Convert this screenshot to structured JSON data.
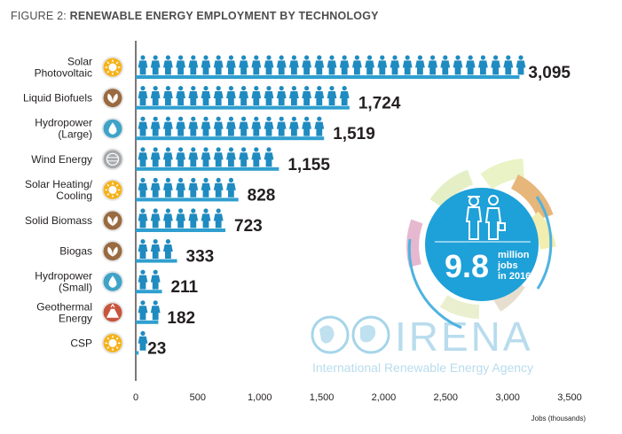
{
  "figure": {
    "prefix": "FIGURE 2:",
    "title": "RENEWABLE ENERGY EMPLOYMENT BY TECHNOLOGY"
  },
  "chart_data": {
    "type": "bar",
    "orientation": "horizontal",
    "categories": [
      "Solar\nPhotovoltaic",
      "Liquid Biofuels",
      "Hydropower\n(Large)",
      "Wind Energy",
      "Solar Heating/\nCooling",
      "Solid Biomass",
      "Biogas",
      "Hydropower\n(Small)",
      "Geothermal\nEnergy",
      "CSP"
    ],
    "values": [
      3095,
      1724,
      1519,
      1155,
      828,
      723,
      333,
      211,
      182,
      23
    ],
    "value_labels": [
      "3,095",
      "1,724",
      "1,519",
      "1,155",
      "828",
      "723",
      "333",
      "211",
      "182",
      "23"
    ],
    "xlim": [
      0,
      3500
    ],
    "xticks": [
      0,
      500,
      1000,
      1500,
      2000,
      2500,
      3000,
      3500
    ],
    "xtick_labels": [
      "0",
      "500",
      "1,000",
      "1,500",
      "2,000",
      "2,500",
      "3,000",
      "3,500"
    ],
    "xlabel": "Jobs (thousands)",
    "icons": [
      "sun-icon",
      "leaf-icon",
      "water-drop-icon",
      "wind-icon",
      "sun-icon",
      "leaf-icon",
      "leaf-icon",
      "water-drop-icon",
      "volcano-icon",
      "sun-icon"
    ],
    "colors": {
      "bar": "#2f9fd0",
      "person": "#1f8bc0",
      "sun": "#f5b21b",
      "leaf": "#9a6b40",
      "water": "#3fa3c8",
      "wind": "#a7a9ac",
      "volcano": "#c8553d"
    }
  },
  "callout": {
    "number": "9.8",
    "line1": "million",
    "line2": "jobs",
    "line3": "in 2016"
  },
  "logo": {
    "wordmark": "IRENA",
    "tagline": "International Renewable Energy Agency"
  }
}
